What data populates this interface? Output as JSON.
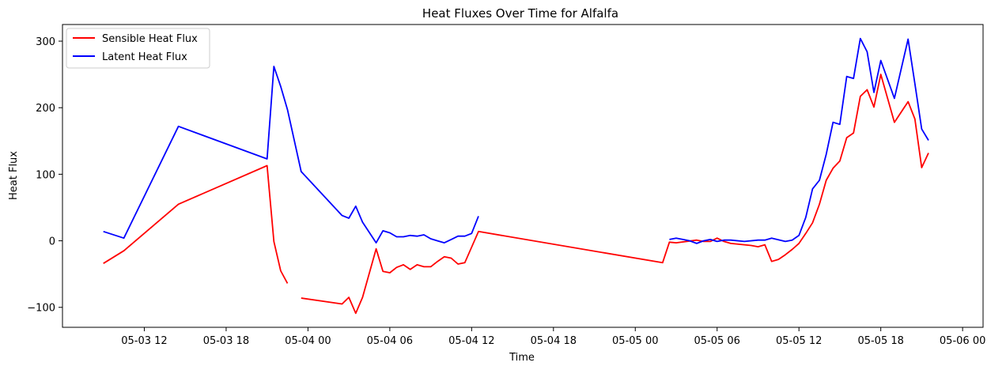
{
  "chart_data": {
    "type": "line",
    "title": "Heat Fluxes Over Time for Alfalfa",
    "xlabel": "Time",
    "ylabel": "Heat Flux",
    "x_tick_labels": [
      "05-03 12",
      "05-03 18",
      "05-04 00",
      "05-04 06",
      "05-04 12",
      "05-04 18",
      "05-05 00",
      "05-05 06",
      "05-05 12",
      "05-05 18",
      "05-06 00"
    ],
    "y_tick_labels": [
      "−100",
      "0",
      "100",
      "200",
      "300"
    ],
    "y_ticks": [
      -100,
      0,
      100,
      200,
      300
    ],
    "ylim": [
      -130,
      325
    ],
    "xlim": [
      "2024-05-03 06:00",
      "2024-05-06 01:30"
    ],
    "grid": false,
    "legend_position": "upper left",
    "series": [
      {
        "name": "Sensible Heat Flux",
        "color": "#ff0000",
        "segments": [
          [
            [
              "2024-05-03 09:00",
              -34
            ],
            [
              "2024-05-03 10:30",
              -15
            ],
            [
              "2024-05-03 14:30",
              55
            ],
            [
              "2024-05-03 21:00",
              113
            ],
            [
              "2024-05-03 21:30",
              -1
            ],
            [
              "2024-05-03 22:00",
              -45
            ],
            [
              "2024-05-03 22:30",
              -64
            ]
          ],
          [
            [
              "2024-05-03 23:30",
              -86
            ],
            [
              "2024-05-04 02:30",
              -95
            ],
            [
              "2024-05-04 03:00",
              -85
            ],
            [
              "2024-05-04 03:30",
              -109
            ],
            [
              "2024-05-04 04:00",
              -85
            ],
            [
              "2024-05-04 05:00",
              -12
            ],
            [
              "2024-05-04 05:30",
              -46
            ],
            [
              "2024-05-04 06:00",
              -48
            ],
            [
              "2024-05-04 06:30",
              -40
            ],
            [
              "2024-05-04 07:00",
              -36
            ],
            [
              "2024-05-04 07:30",
              -43
            ],
            [
              "2024-05-04 08:00",
              -36
            ],
            [
              "2024-05-04 08:30",
              -39
            ],
            [
              "2024-05-04 09:00",
              -39
            ],
            [
              "2024-05-04 09:30",
              -31
            ],
            [
              "2024-05-04 10:00",
              -24
            ],
            [
              "2024-05-04 10:30",
              -26
            ],
            [
              "2024-05-04 11:00",
              -35
            ],
            [
              "2024-05-04 11:30",
              -33
            ],
            [
              "2024-05-04 12:30",
              14
            ],
            [
              "2024-05-05 02:00",
              -33
            ],
            [
              "2024-05-05 02:30",
              -2
            ],
            [
              "2024-05-05 03:00",
              -3
            ],
            [
              "2024-05-05 04:30",
              1
            ],
            [
              "2024-05-05 05:00",
              -1
            ],
            [
              "2024-05-05 05:30",
              -1
            ],
            [
              "2024-05-05 06:00",
              4
            ],
            [
              "2024-05-05 06:30",
              -1
            ],
            [
              "2024-05-05 07:00",
              -4
            ],
            [
              "2024-05-05 08:30",
              -7
            ],
            [
              "2024-05-05 09:00",
              -9
            ],
            [
              "2024-05-05 09:30",
              -6
            ],
            [
              "2024-05-05 10:00",
              -31
            ],
            [
              "2024-05-05 10:30",
              -28
            ],
            [
              "2024-05-05 11:00",
              -21
            ],
            [
              "2024-05-05 11:30",
              -13
            ],
            [
              "2024-05-05 12:00",
              -4
            ],
            [
              "2024-05-05 12:30",
              11
            ],
            [
              "2024-05-05 13:00",
              27
            ],
            [
              "2024-05-05 13:30",
              55
            ],
            [
              "2024-05-05 14:00",
              91
            ],
            [
              "2024-05-05 14:30",
              109
            ],
            [
              "2024-05-05 15:00",
              120
            ],
            [
              "2024-05-05 15:30",
              155
            ],
            [
              "2024-05-05 16:00",
              162
            ],
            [
              "2024-05-05 16:30",
              217
            ],
            [
              "2024-05-05 17:00",
              227
            ],
            [
              "2024-05-05 17:30",
              201
            ],
            [
              "2024-05-05 18:00",
              250
            ],
            [
              "2024-05-05 19:00",
              178
            ],
            [
              "2024-05-05 20:00",
              209
            ],
            [
              "2024-05-05 20:30",
              183
            ],
            [
              "2024-05-05 21:00",
              110
            ],
            [
              "2024-05-05 21:30",
              132
            ]
          ]
        ]
      },
      {
        "name": "Latent Heat Flux",
        "color": "#0000ff",
        "segments": [
          [
            [
              "2024-05-03 09:00",
              14
            ],
            [
              "2024-05-03 10:30",
              4
            ],
            [
              "2024-05-03 14:30",
              172
            ],
            [
              "2024-05-03 21:00",
              123
            ],
            [
              "2024-05-03 21:30",
              262
            ],
            [
              "2024-05-03 22:00",
              232
            ],
            [
              "2024-05-03 22:30",
              197
            ],
            [
              "2024-05-03 23:30",
              104
            ],
            [
              "2024-05-04 02:30",
              38
            ],
            [
              "2024-05-04 03:00",
              34
            ],
            [
              "2024-05-04 03:30",
              52
            ],
            [
              "2024-05-04 04:00",
              28
            ],
            [
              "2024-05-04 05:00",
              -3
            ],
            [
              "2024-05-04 05:30",
              15
            ],
            [
              "2024-05-04 06:00",
              12
            ],
            [
              "2024-05-04 06:30",
              6
            ],
            [
              "2024-05-04 07:00",
              6
            ],
            [
              "2024-05-04 07:30",
              8
            ],
            [
              "2024-05-04 08:00",
              7
            ],
            [
              "2024-05-04 08:30",
              9
            ],
            [
              "2024-05-04 09:00",
              3
            ],
            [
              "2024-05-04 09:30",
              0
            ],
            [
              "2024-05-04 10:00",
              -3
            ],
            [
              "2024-05-04 10:30",
              2
            ],
            [
              "2024-05-04 11:00",
              7
            ],
            [
              "2024-05-04 11:30",
              7
            ],
            [
              "2024-05-04 12:00",
              11
            ],
            [
              "2024-05-04 12:30",
              37
            ]
          ],
          [
            [
              "2024-05-05 02:30",
              2
            ],
            [
              "2024-05-05 03:00",
              4
            ],
            [
              "2024-05-05 03:30",
              2
            ],
            [
              "2024-05-05 04:00",
              0
            ],
            [
              "2024-05-05 04:30",
              -4
            ],
            [
              "2024-05-05 05:00",
              0
            ],
            [
              "2024-05-05 05:30",
              2
            ],
            [
              "2024-05-05 06:00",
              -1
            ],
            [
              "2024-05-05 06:30",
              1
            ],
            [
              "2024-05-05 07:00",
              1
            ],
            [
              "2024-05-05 08:00",
              -1
            ],
            [
              "2024-05-05 09:00",
              1
            ],
            [
              "2024-05-05 09:30",
              1
            ],
            [
              "2024-05-05 10:00",
              4
            ],
            [
              "2024-05-05 11:00",
              -1
            ],
            [
              "2024-05-05 11:30",
              1
            ],
            [
              "2024-05-05 12:00",
              8
            ],
            [
              "2024-05-05 12:30",
              35
            ],
            [
              "2024-05-05 13:00",
              78
            ],
            [
              "2024-05-05 13:30",
              91
            ],
            [
              "2024-05-05 14:00",
              130
            ],
            [
              "2024-05-05 14:30",
              178
            ],
            [
              "2024-05-05 15:00",
              175
            ],
            [
              "2024-05-05 15:30",
              247
            ],
            [
              "2024-05-05 16:00",
              244
            ],
            [
              "2024-05-05 16:30",
              304
            ],
            [
              "2024-05-05 17:00",
              284
            ],
            [
              "2024-05-05 17:30",
              223
            ],
            [
              "2024-05-05 18:00",
              271
            ],
            [
              "2024-05-05 19:00",
              214
            ],
            [
              "2024-05-05 20:00",
              303
            ],
            [
              "2024-05-05 20:30",
              236
            ],
            [
              "2024-05-05 21:00",
              168
            ],
            [
              "2024-05-05 21:30",
              151
            ]
          ]
        ]
      }
    ]
  }
}
